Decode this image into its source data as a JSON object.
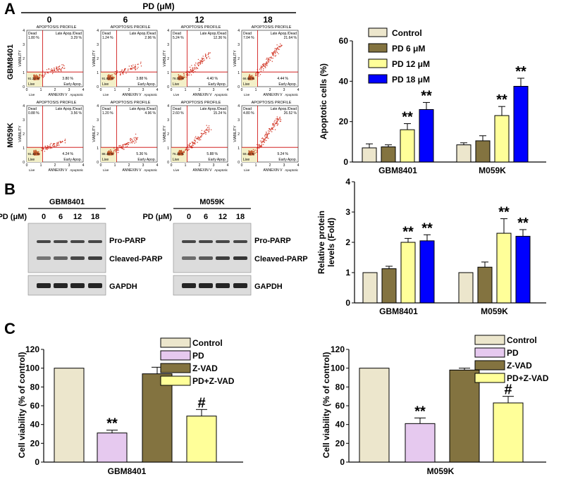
{
  "panel_labels": {
    "A": "A",
    "B": "B",
    "C": "C"
  },
  "panel_a": {
    "pd_header": "PD (μM)",
    "doses": [
      "0",
      "6",
      "12",
      "18"
    ],
    "row_labels": [
      "GBM8401",
      "M059K"
    ],
    "flow": {
      "title": "APOPTOSIS PROFILE",
      "x_label": "ANNEXIN V",
      "y_label": "VIABILITY",
      "q_dead": "Dead",
      "q_late": "Late Apop./Dead",
      "q_live": "Live",
      "q_early": "Early Apop.",
      "bottom_live": "Live",
      "bottom_apop": "Apoptotic",
      "ticks": [
        "0",
        "1",
        "2",
        "3",
        "4"
      ],
      "plots": [
        {
          "dead": "1.80 %",
          "late": "3.29 %",
          "live": "91.22 %",
          "early": "3.80 %"
        },
        {
          "dead": "1.24 %",
          "late": "2.96 %",
          "live": "91.93 %",
          "early": "3.88 %"
        },
        {
          "dead": "5.24 %",
          "late": "12.36 %",
          "live": "78.00 %",
          "early": "4.40 %"
        },
        {
          "dead": "7.04 %",
          "late": "21.64 %",
          "live": "66.88 %",
          "early": "4.44 %"
        },
        {
          "dead": "0.88 %",
          "late": "3.56 %",
          "live": "91.32 %",
          "early": "4.24 %"
        },
        {
          "dead": "1.20 %",
          "late": "4.96 %",
          "live": "88.48 %",
          "early": "5.36 %"
        },
        {
          "dead": "2.60 %",
          "late": "15.24 %",
          "live": "76.28 %",
          "early": "5.88 %"
        },
        {
          "dead": "4.80 %",
          "late": "26.52 %",
          "live": "59.44 %",
          "early": "9.24 %"
        }
      ]
    }
  },
  "western": {
    "pd_label": "PD (μM)",
    "doses": [
      "0",
      "6",
      "12",
      "18"
    ],
    "blots": [
      {
        "cell": "GBM8401"
      },
      {
        "cell": "M059K"
      }
    ],
    "bands": {
      "pro": "Pro-PARP",
      "cleaved": "Cleaved-PARP",
      "gapdh": "GAPDH"
    }
  },
  "colors": {
    "control": "#ece6cc",
    "pd6": "#837340",
    "pd12": "#ffff99",
    "pd18": "#0000ff",
    "pd": "#e6c9ef",
    "zvad": "#837340",
    "pdzvad": "#ffff99",
    "quad_line": "#cc0000",
    "dots": "#d23a2a"
  },
  "chart_data": [
    {
      "id": "apoptotic",
      "type": "bar",
      "title": "",
      "xlabel": "",
      "ylabel": "Apoptotic cells (%)",
      "ylim": [
        0,
        60
      ],
      "yticks": [
        "0",
        "20",
        "40",
        "60"
      ],
      "categories": [
        "GBM8401",
        "M059K"
      ],
      "series": [
        {
          "name": "Control",
          "values": [
            7,
            8.5
          ],
          "errors": [
            2,
            1
          ]
        },
        {
          "name": "PD   6 μM",
          "values": [
            7.5,
            10.5
          ],
          "errors": [
            1,
            2.5
          ]
        },
        {
          "name": "PD 12 μM",
          "values": [
            16,
            23
          ],
          "errors": [
            3,
            4.5
          ]
        },
        {
          "name": "PD 18 μM",
          "values": [
            26,
            37.5
          ],
          "errors": [
            3.5,
            4
          ]
        }
      ],
      "sig": [
        [
          "",
          ""
        ],
        [
          "",
          ""
        ],
        [
          "**",
          "**"
        ],
        [
          "**",
          "**"
        ]
      ]
    },
    {
      "id": "protein",
      "type": "bar",
      "title": "",
      "xlabel": "",
      "ylabel": "Relative protein levels (Fold)",
      "ylim": [
        0,
        4
      ],
      "yticks": [
        "0",
        "1",
        "2",
        "3",
        "4"
      ],
      "categories": [
        "GBM8401",
        "M059K"
      ],
      "series": [
        {
          "name": "Control",
          "values": [
            1,
            1
          ],
          "errors": [
            0,
            0
          ]
        },
        {
          "name": "PD   6 μM",
          "values": [
            1.13,
            1.18
          ],
          "errors": [
            0.08,
            0.17
          ]
        },
        {
          "name": "PD 12 μM",
          "values": [
            2.0,
            2.3
          ],
          "errors": [
            0.13,
            0.48
          ]
        },
        {
          "name": "PD 18 μM",
          "values": [
            2.05,
            2.2
          ],
          "errors": [
            0.2,
            0.22
          ]
        }
      ],
      "sig": [
        [
          "",
          ""
        ],
        [
          "",
          ""
        ],
        [
          "**",
          "**"
        ],
        [
          "**",
          "**"
        ]
      ]
    },
    {
      "id": "viability_gbm",
      "type": "bar",
      "title": "",
      "xlabel": "GBM8401",
      "ylabel": "Cell viability (% of control)",
      "ylim": [
        0,
        120
      ],
      "yticks": [
        "0",
        "20",
        "40",
        "60",
        "80",
        "100",
        "120"
      ],
      "categories": [
        "Control",
        "PD",
        "Z-VAD",
        "PD+Z-VAD"
      ],
      "values": [
        100,
        31,
        94,
        49
      ],
      "errors": [
        0,
        3,
        7,
        7
      ],
      "sig": [
        "",
        "**",
        "",
        "#"
      ]
    },
    {
      "id": "viability_m059k",
      "type": "bar",
      "title": "",
      "xlabel": "M059K",
      "ylabel": "Cell viability (% of control)",
      "ylim": [
        0,
        120
      ],
      "yticks": [
        "0",
        "20",
        "40",
        "60",
        "80",
        "100",
        "120"
      ],
      "categories": [
        "Control",
        "PD",
        "Z-VAD",
        "PD+Z-VAD"
      ],
      "values": [
        100,
        41,
        98,
        63
      ],
      "errors": [
        0,
        6,
        2,
        7
      ],
      "sig": [
        "",
        "**",
        "",
        "#"
      ]
    }
  ]
}
